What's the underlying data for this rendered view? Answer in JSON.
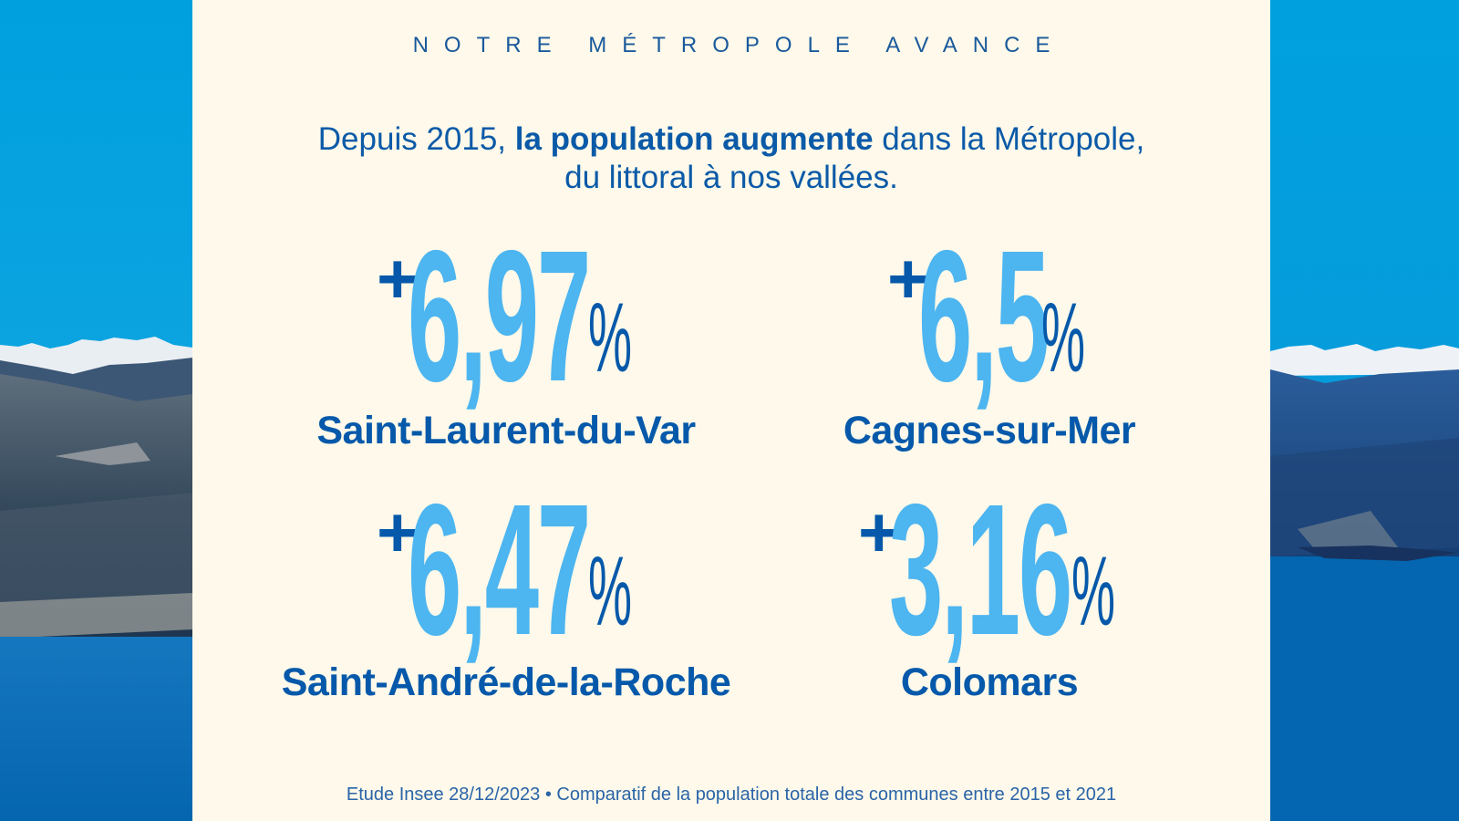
{
  "kicker": "NOTRE MÉTROPOLE AVANCE",
  "headline": {
    "part1": "Depuis 2015, ",
    "bold": "la population augmente",
    "part2": " dans la Métropole,",
    "line2": "du littoral à nos vallées."
  },
  "stats": [
    {
      "sign": "+",
      "value": "6,97",
      "unit": "%",
      "commune": "Saint-Laurent-du-Var"
    },
    {
      "sign": "+",
      "value": "6,5",
      "unit": "%",
      "commune": "Cagnes-sur-Mer"
    },
    {
      "sign": "+",
      "value": "6,47",
      "unit": "%",
      "commune": "Saint-André-de-la-Roche"
    },
    {
      "sign": "+",
      "value": "3,16",
      "unit": "%",
      "commune": "Colomars"
    }
  ],
  "footnote": "Etude Insee 28/12/2023 • Comparatif de la population totale des communes entre 2015 et 2021",
  "colors": {
    "background": "#FEF9EA",
    "dark_blue": "#0659AA",
    "light_blue": "#4DB5F0",
    "sky": "#00A0DE",
    "sea": "#0466B0"
  }
}
